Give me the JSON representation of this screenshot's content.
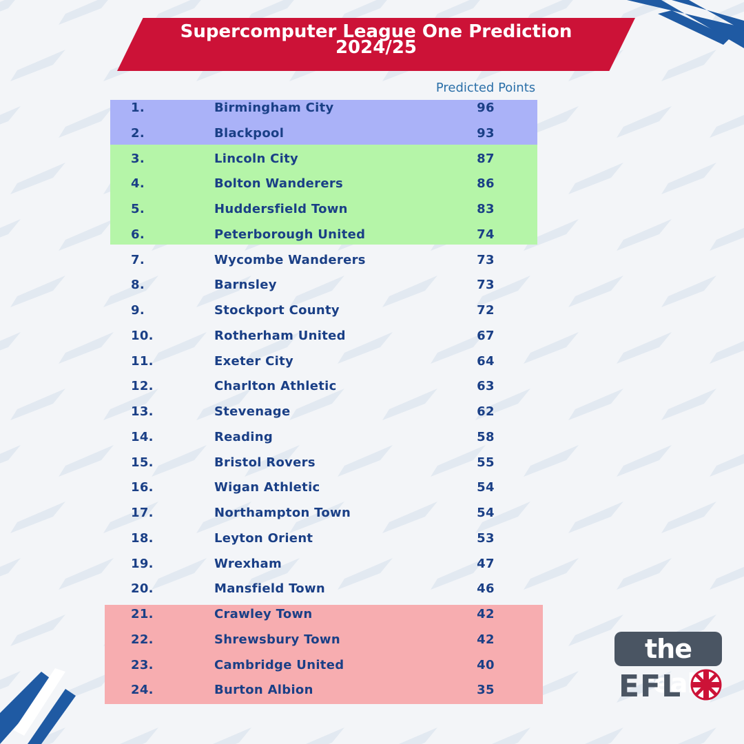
{
  "title": "Supercomputer League One Prediction 2024/25",
  "title_line1": "Supercomputer League One Prediction",
  "title_line2": "2024/25",
  "column_header": "Predicted Points",
  "brand": {
    "logo_text_top": "the real",
    "logo_text_bottom": "EFL"
  },
  "colors": {
    "banner": "#cc1237",
    "text": "#1a3f86",
    "promotion_band": "#aab2f8",
    "playoff_band": "#b5f5a8",
    "relegation_band": "#f7adb0"
  },
  "table": [
    {
      "pos": "1.",
      "team": "Birmingham City",
      "points": "96"
    },
    {
      "pos": "2.",
      "team": "Blackpool",
      "points": "93"
    },
    {
      "pos": "3.",
      "team": "Lincoln City",
      "points": "87"
    },
    {
      "pos": "4.",
      "team": "Bolton Wanderers",
      "points": "86"
    },
    {
      "pos": "5.",
      "team": "Huddersfield Town",
      "points": "83"
    },
    {
      "pos": "6.",
      "team": "Peterborough United",
      "points": "74"
    },
    {
      "pos": "7.",
      "team": "Wycombe Wanderers",
      "points": "73"
    },
    {
      "pos": "8.",
      "team": "Barnsley",
      "points": "73"
    },
    {
      "pos": "9.",
      "team": "Stockport County",
      "points": "72"
    },
    {
      "pos": "10.",
      "team": "Rotherham United",
      "points": "67"
    },
    {
      "pos": "11.",
      "team": "Exeter City",
      "points": "64"
    },
    {
      "pos": "12.",
      "team": "Charlton Athletic",
      "points": "63"
    },
    {
      "pos": "13.",
      "team": "Stevenage",
      "points": "62"
    },
    {
      "pos": "14.",
      "team": "Reading",
      "points": "58"
    },
    {
      "pos": "15.",
      "team": "Bristol Rovers",
      "points": "55"
    },
    {
      "pos": "16.",
      "team": "Wigan Athletic",
      "points": "54"
    },
    {
      "pos": "17.",
      "team": "Northampton Town",
      "points": "54"
    },
    {
      "pos": "18.",
      "team": "Leyton Orient",
      "points": "53"
    },
    {
      "pos": "19.",
      "team": "Wrexham",
      "points": "47"
    },
    {
      "pos": "20.",
      "team": "Mansfield Town",
      "points": "46"
    },
    {
      "pos": "21.",
      "team": "Crawley Town",
      "points": "42"
    },
    {
      "pos": "22.",
      "team": "Shrewsbury Town",
      "points": "42"
    },
    {
      "pos": "23.",
      "team": "Cambridge United",
      "points": "40"
    },
    {
      "pos": "24.",
      "team": "Burton Albion",
      "points": "35"
    }
  ]
}
